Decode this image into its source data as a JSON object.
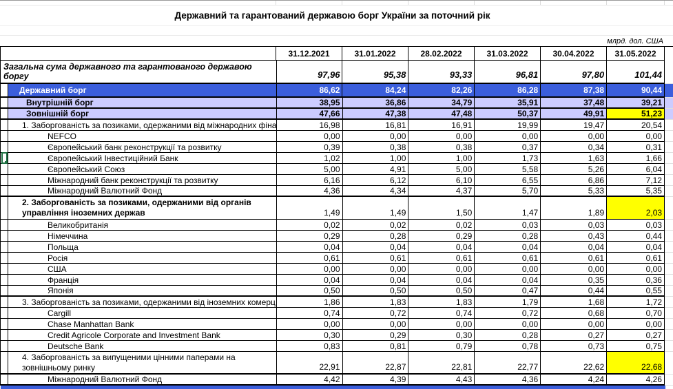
{
  "title": "Державний та гарантований державою борг України за поточний рік",
  "units_note": "млрд. дол. США",
  "columns": [
    "31.12.2021",
    "31.01.2022",
    "28.02.2022",
    "31.03.2022",
    "30.04.2022",
    "31.05.2022"
  ],
  "colors": {
    "header_row_blue": "#3B5EDC",
    "subtotal_lavender": "#CCCCFF",
    "highlight_yellow": "#FFFF00",
    "selection_green": "#1F7244"
  },
  "table": {
    "rows": [
      {
        "type": "total",
        "label": "Загальна сума державного та гарантованого державою боргу",
        "values": [
          "97,96",
          "95,38",
          "93,33",
          "96,81",
          "97,80",
          "101,44"
        ],
        "thick_bottom": true
      },
      {
        "type": "blue",
        "label": "Державний борг",
        "values": [
          "86,62",
          "84,24",
          "82,26",
          "86,28",
          "87,38",
          "90,44"
        ],
        "thick_bottom": true
      },
      {
        "type": "lavender",
        "label": "Внутрішній борг",
        "values": [
          "38,95",
          "36,86",
          "34,79",
          "35,91",
          "37,48",
          "39,21"
        ],
        "thick_bottom": true
      },
      {
        "type": "lavender",
        "label": "Зовнішній борг",
        "values": [
          "47,66",
          "47,38",
          "47,48",
          "50,37",
          "49,91",
          "51,23"
        ],
        "yellow_last": true,
        "thick_bottom": true
      },
      {
        "type": "section",
        "label": "1. Заборгованість за позиками, одержаними від міжнародних фіна",
        "values": [
          "16,98",
          "16,81",
          "16,91",
          "19,99",
          "19,47",
          "20,54"
        ]
      },
      {
        "type": "item",
        "label": "NEFCO",
        "values": [
          "0,00",
          "0,00",
          "0,00",
          "0,00",
          "0,00",
          "0,00"
        ]
      },
      {
        "type": "item",
        "label": "Європейський банк реконструкції та розвитку",
        "values": [
          "0,39",
          "0,38",
          "0,38",
          "0,37",
          "0,34",
          "0,31"
        ]
      },
      {
        "type": "item",
        "label": "Європейський Інвестиційний Банк",
        "values": [
          "1,02",
          "1,00",
          "1,00",
          "1,73",
          "1,63",
          "1,66"
        ],
        "selected_marker": true
      },
      {
        "type": "item",
        "label": "Європейський Союз",
        "values": [
          "5,00",
          "4,91",
          "5,00",
          "5,58",
          "5,26",
          "6,04"
        ]
      },
      {
        "type": "item",
        "label": "Міжнародний банк реконструкції та розвитку",
        "values": [
          "6,16",
          "6,12",
          "6,10",
          "6,55",
          "6,86",
          "7,12"
        ]
      },
      {
        "type": "item",
        "label": "Міжнародний Валютний Фонд",
        "values": [
          "4,36",
          "4,34",
          "4,37",
          "5,70",
          "5,33",
          "5,35"
        ],
        "thick_bottom": true
      },
      {
        "type": "section",
        "label": "2. Заборгованість за позиками, одержаними від органів управління іноземних держав",
        "values": [
          "1,49",
          "1,49",
          "1,50",
          "1,47",
          "1,89",
          "2,03"
        ],
        "bold": true,
        "tall": true,
        "yellow_last": true
      },
      {
        "type": "item",
        "label": "Великобританія",
        "values": [
          "0,02",
          "0,02",
          "0,02",
          "0,03",
          "0,03",
          "0,03"
        ]
      },
      {
        "type": "item",
        "label": "Німеччина",
        "values": [
          "0,29",
          "0,28",
          "0,29",
          "0,28",
          "0,43",
          "0,44"
        ]
      },
      {
        "type": "item",
        "label": "Польща",
        "values": [
          "0,04",
          "0,04",
          "0,04",
          "0,04",
          "0,04",
          "0,04"
        ]
      },
      {
        "type": "item",
        "label": "Росія",
        "values": [
          "0,61",
          "0,61",
          "0,61",
          "0,61",
          "0,61",
          "0,61"
        ]
      },
      {
        "type": "item",
        "label": "США",
        "values": [
          "0,00",
          "0,00",
          "0,00",
          "0,00",
          "0,00",
          "0,00"
        ]
      },
      {
        "type": "item",
        "label": "Франція",
        "values": [
          "0,04",
          "0,04",
          "0,04",
          "0,04",
          "0,35",
          "0,36"
        ]
      },
      {
        "type": "item",
        "label": "Японія",
        "values": [
          "0,50",
          "0,50",
          "0,50",
          "0,47",
          "0,44",
          "0,55"
        ],
        "thick_bottom": true
      },
      {
        "type": "section",
        "label": "3. Заборгованість за позиками, одержаними від іноземних комерц",
        "values": [
          "1,86",
          "1,83",
          "1,83",
          "1,79",
          "1,68",
          "1,72"
        ]
      },
      {
        "type": "item",
        "label": "Cargill",
        "values": [
          "0,74",
          "0,72",
          "0,74",
          "0,72",
          "0,68",
          "0,70"
        ]
      },
      {
        "type": "item",
        "label": "Chase Manhattan Bank",
        "values": [
          "0,00",
          "0,00",
          "0,00",
          "0,00",
          "0,00",
          "0,00"
        ]
      },
      {
        "type": "item",
        "label": "Credit Agricole Corporate and Investment Bank",
        "values": [
          "0,30",
          "0,29",
          "0,30",
          "0,28",
          "0,27",
          "0,27"
        ]
      },
      {
        "type": "item",
        "label": "Deutsche Bank",
        "values": [
          "0,83",
          "0,81",
          "0,79",
          "0,78",
          "0,73",
          "0,75"
        ]
      },
      {
        "type": "section",
        "label": "4. Заборгованість за випущеними цінними паперами на зовнішньому ринку",
        "values": [
          "22,91",
          "22,87",
          "22,81",
          "22,77",
          "22,62",
          "22,68"
        ],
        "tall": true,
        "yellow_last": true,
        "thick_bottom": true
      },
      {
        "type": "item",
        "label": "Міжнародний Валютний Фонд",
        "values": [
          "4,42",
          "4,39",
          "4,43",
          "4,36",
          "4,24",
          "4,26"
        ],
        "thick_bottom": true
      }
    ]
  }
}
